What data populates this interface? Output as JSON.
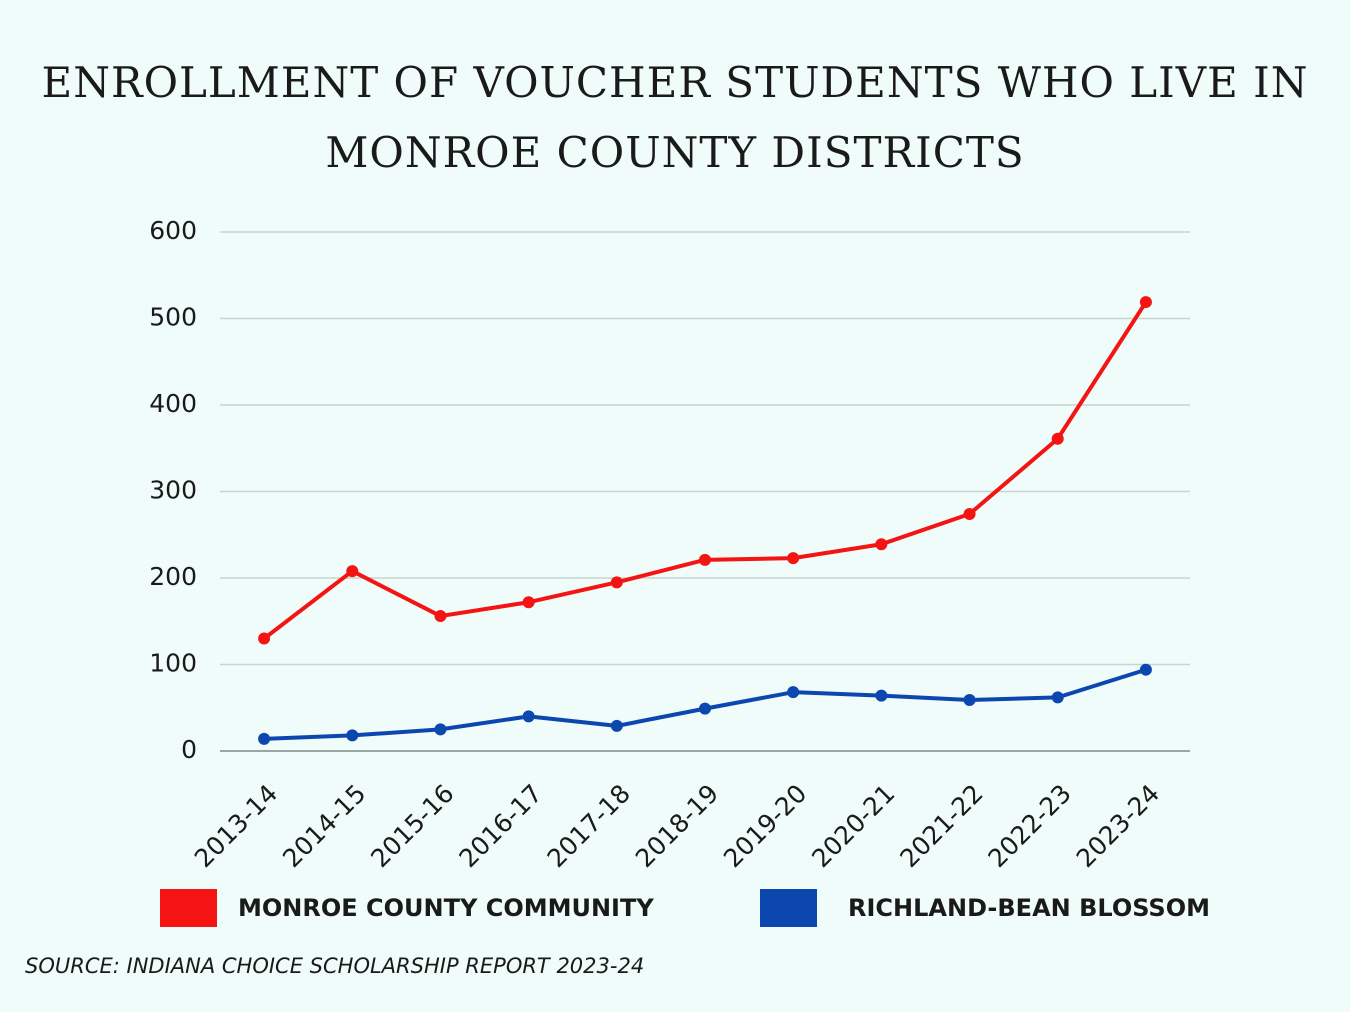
{
  "chart_data": {
    "type": "line",
    "title": "ENROLLMENT OF VOUCHER STUDENTS WHO LIVE IN MONROE COUNTY DISTRICTS",
    "categories": [
      "2013-14",
      "2014-15",
      "2015-16",
      "2016-17",
      "2017-18",
      "2018-19",
      "2019-20",
      "2020-21",
      "2021-22",
      "2022-23",
      "2023-24"
    ],
    "series": [
      {
        "name": "MONROE COUNTY COMMUNITY",
        "color": "#f41414",
        "values": [
          130,
          208,
          156,
          172,
          195,
          221,
          223,
          239,
          274,
          361,
          519
        ]
      },
      {
        "name": "RICHLAND-BEAN BLOSSOM",
        "color": "#0c47b0",
        "values": [
          14,
          18,
          25,
          40,
          29,
          49,
          68,
          64,
          59,
          62,
          94
        ]
      }
    ],
    "ylim": [
      0,
      600
    ],
    "yticks": [
      0,
      100,
      200,
      300,
      400,
      500,
      600
    ],
    "grid": true,
    "source": "SOURCE: INDIANA CHOICE SCHOLARSHIP REPORT 2023-24"
  }
}
